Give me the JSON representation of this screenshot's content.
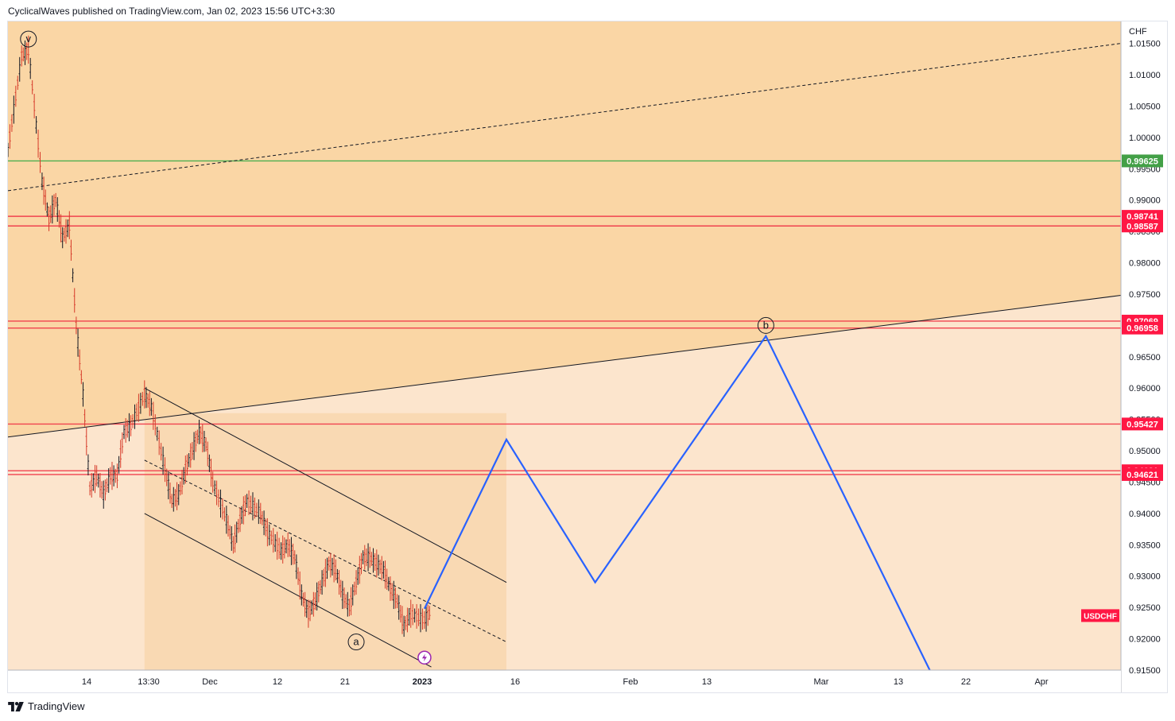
{
  "header": {
    "publisher_text": "CyclicalWaves published on TradingView.com, Jan 02, 2023 15:56 UTC+3:30"
  },
  "footer": {
    "brand": "TradingView",
    "logo_icon": "tradingview-logo-icon"
  },
  "colors": {
    "upper_zone": "#fad6a5",
    "lower_zone": "#fce5cd",
    "channel_zone": "#f8d4a8",
    "resistance_line": "#f0434f",
    "support_green": "#4caf50",
    "projection": "#2962ff",
    "candle_up": "#131722",
    "candle_down": "#d63a2a",
    "price_badge": "#ff1744",
    "green_badge": "#43a047"
  },
  "chart_data": {
    "type": "line",
    "symbol": "USDCHF",
    "currency": "CHF",
    "y_ticks": [
      "1.01500",
      "1.01000",
      "1.00500",
      "1.00000",
      "0.99500",
      "0.99000",
      "0.98500",
      "0.98000",
      "0.97500",
      "0.97000",
      "0.96500",
      "0.96000",
      "0.95500",
      "0.95000",
      "0.94500",
      "0.94000",
      "0.93500",
      "0.93000",
      "0.92500",
      "0.92000",
      "0.91500"
    ],
    "x_ticks": [
      "14",
      "13:30",
      "Dec",
      "12",
      "21",
      "2023",
      "16",
      "Feb",
      "13",
      "Mar",
      "13",
      "22",
      "Apr"
    ],
    "ylim": [
      0.915,
      1.0185
    ],
    "horizontal_levels": [
      {
        "value": 0.99625,
        "label": "0.99625",
        "color": "green"
      },
      {
        "value": 0.98741,
        "label": "0.98741",
        "color": "red"
      },
      {
        "value": 0.98587,
        "label": "0.98587",
        "color": "red"
      },
      {
        "value": 0.97069,
        "label": "0.97069",
        "color": "red"
      },
      {
        "value": 0.96958,
        "label": "0.96958",
        "color": "red"
      },
      {
        "value": 0.95427,
        "label": "0.95427",
        "color": "red"
      },
      {
        "value": 0.94681,
        "label": "0.94681",
        "color": "red"
      },
      {
        "value": 0.94621,
        "label": "0.94621",
        "color": "red"
      }
    ],
    "wave_labels": [
      {
        "text": "v",
        "date": "2022-11-04",
        "value": 1.0157
      },
      {
        "text": "a",
        "date": "2022-12-22",
        "value": 0.9195
      },
      {
        "text": "b",
        "date": "2023-02-20",
        "value": 0.97
      }
    ],
    "price_path": [
      {
        "date": "2022-11-01",
        "value": 0.998
      },
      {
        "date": "2022-11-03",
        "value": 1.013
      },
      {
        "date": "2022-11-04",
        "value": 1.014
      },
      {
        "date": "2022-11-06",
        "value": 0.993
      },
      {
        "date": "2022-11-07",
        "value": 0.987
      },
      {
        "date": "2022-11-08",
        "value": 0.99
      },
      {
        "date": "2022-11-09",
        "value": 0.984
      },
      {
        "date": "2022-11-10",
        "value": 0.986
      },
      {
        "date": "2022-11-11",
        "value": 0.97
      },
      {
        "date": "2022-11-12",
        "value": 0.959
      },
      {
        "date": "2022-11-13",
        "value": 0.944
      },
      {
        "date": "2022-11-14",
        "value": 0.946
      },
      {
        "date": "2022-11-15",
        "value": 0.943
      },
      {
        "date": "2022-11-16",
        "value": 0.946
      },
      {
        "date": "2022-11-17",
        "value": 0.946
      },
      {
        "date": "2022-11-18",
        "value": 0.953
      },
      {
        "date": "2022-11-19",
        "value": 0.954
      },
      {
        "date": "2022-11-21",
        "value": 0.959
      },
      {
        "date": "2022-11-22",
        "value": 0.957
      },
      {
        "date": "2022-11-24",
        "value": 0.947
      },
      {
        "date": "2022-11-25",
        "value": 0.942
      },
      {
        "date": "2022-11-26",
        "value": 0.943
      },
      {
        "date": "2022-11-27",
        "value": 0.947
      },
      {
        "date": "2022-11-28",
        "value": 0.95
      },
      {
        "date": "2022-11-29",
        "value": 0.953
      },
      {
        "date": "2022-11-30",
        "value": 0.951
      },
      {
        "date": "2022-12-01",
        "value": 0.945
      },
      {
        "date": "2022-12-03",
        "value": 0.939
      },
      {
        "date": "2022-12-04",
        "value": 0.935
      },
      {
        "date": "2022-12-05",
        "value": 0.939
      },
      {
        "date": "2022-12-06",
        "value": 0.942
      },
      {
        "date": "2022-12-08",
        "value": 0.94
      },
      {
        "date": "2022-12-09",
        "value": 0.937
      },
      {
        "date": "2022-12-11",
        "value": 0.934
      },
      {
        "date": "2022-12-12",
        "value": 0.935
      },
      {
        "date": "2022-12-13",
        "value": 0.933
      },
      {
        "date": "2022-12-14",
        "value": 0.927
      },
      {
        "date": "2022-12-15",
        "value": 0.924
      },
      {
        "date": "2022-12-16",
        "value": 0.926
      },
      {
        "date": "2022-12-17",
        "value": 0.929
      },
      {
        "date": "2022-12-18",
        "value": 0.932
      },
      {
        "date": "2022-12-19",
        "value": 0.931
      },
      {
        "date": "2022-12-20",
        "value": 0.927
      },
      {
        "date": "2022-12-21",
        "value": 0.925
      },
      {
        "date": "2022-12-22",
        "value": 0.929
      },
      {
        "date": "2022-12-23",
        "value": 0.933
      },
      {
        "date": "2022-12-24",
        "value": 0.933
      },
      {
        "date": "2022-12-25",
        "value": 0.932
      },
      {
        "date": "2022-12-26",
        "value": 0.931
      },
      {
        "date": "2022-12-27",
        "value": 0.928
      },
      {
        "date": "2022-12-28",
        "value": 0.926
      },
      {
        "date": "2022-12-29",
        "value": 0.922
      },
      {
        "date": "2022-12-30",
        "value": 0.924
      },
      {
        "date": "2023-01-01",
        "value": 0.923
      },
      {
        "date": "2023-01-02",
        "value": 0.9245
      }
    ],
    "projection_path": [
      {
        "date": "2023-01-01",
        "value": 0.9248
      },
      {
        "date": "2023-01-13",
        "value": 0.9518
      },
      {
        "date": "2023-01-26",
        "value": 0.929
      },
      {
        "date": "2023-02-20",
        "value": 0.9683
      },
      {
        "date": "2023-03-16",
        "value": 0.915
      }
    ],
    "trendlines": [
      {
        "style": "dashed",
        "from": {
          "date": "2022-11-01",
          "value": 0.9915
        },
        "to": {
          "date": "2023-04-13",
          "value": 1.015
        }
      },
      {
        "style": "solid",
        "from": {
          "date": "2022-11-01",
          "value": 0.9522
        },
        "to": {
          "date": "2023-04-13",
          "value": 0.9748
        }
      },
      {
        "style": "solid",
        "from": {
          "date": "2022-11-21",
          "value": 0.96
        },
        "to": {
          "date": "2023-01-13",
          "value": 0.929
        }
      },
      {
        "style": "dashed",
        "from": {
          "date": "2022-11-21",
          "value": 0.9485
        },
        "to": {
          "date": "2023-01-13",
          "value": 0.9195
        }
      },
      {
        "style": "solid",
        "from": {
          "date": "2022-11-21",
          "value": 0.94
        },
        "to": {
          "date": "2023-01-02",
          "value": 0.9155
        }
      }
    ],
    "zones": [
      {
        "name": "upper",
        "from_value": 0.9522,
        "to_value": 1.0185
      },
      {
        "name": "channel",
        "from_date": "2022-11-21",
        "to_date": "2023-01-13"
      }
    ],
    "grid": false,
    "legend": "none"
  }
}
